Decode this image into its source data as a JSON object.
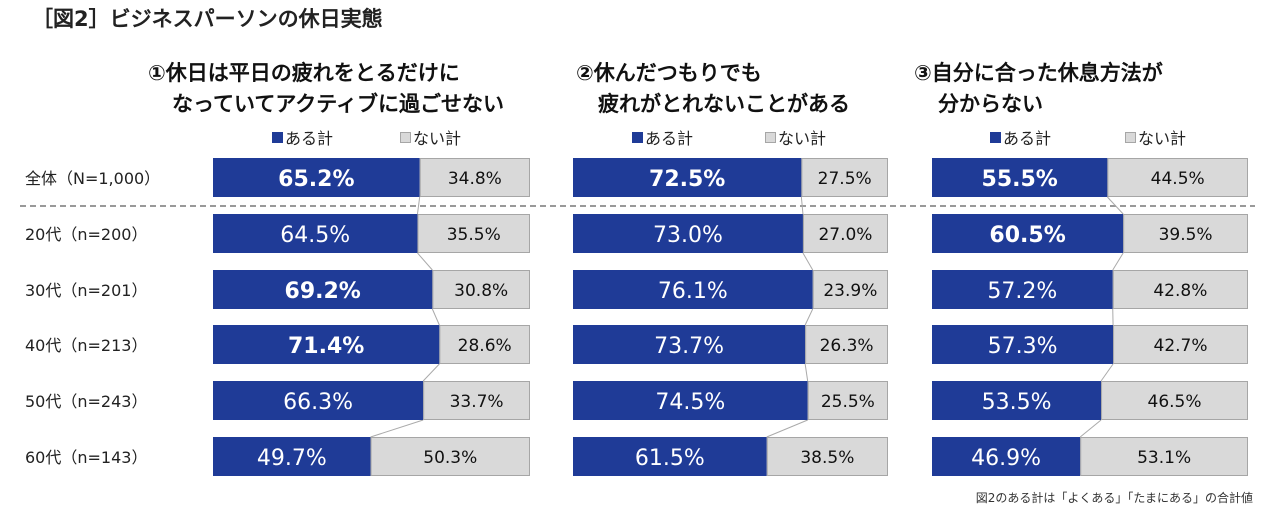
{
  "title": "［図2］ビジネスパーソンの休日実態",
  "footnote": "図2のある計は「よくある」「たまにある」の合計値",
  "colors": {
    "aru": "#1f3b97",
    "nai": "#d9d9d9",
    "nai_border": "#a6a6a6"
  },
  "chart_data": {
    "type": "bar",
    "stacked": true,
    "orientation": "horizontal",
    "xlim": [
      0,
      100
    ],
    "unit": "%",
    "categories": [
      "全体（N=1,000）",
      "20代（n=200）",
      "30代（n=201）",
      "40代（n=213）",
      "50代（n=243）",
      "60代（n=143）"
    ],
    "legend": [
      "ある計",
      "ない計"
    ],
    "panels": [
      {
        "title_lines": [
          "①休日は平日の疲れをとるだけに",
          "なっていてアクティブに過ごせない"
        ],
        "series": [
          {
            "name": "ある計",
            "values": [
              65.2,
              64.5,
              69.2,
              71.4,
              66.3,
              49.7
            ]
          },
          {
            "name": "ない計",
            "values": [
              34.8,
              35.5,
              30.8,
              28.6,
              33.7,
              50.3
            ]
          }
        ],
        "labels_aru": [
          "65.2%",
          "64.5%",
          "69.2%",
          "71.4%",
          "66.3%",
          "49.7%"
        ],
        "labels_nai": [
          "34.8%",
          "35.5%",
          "30.8%",
          "28.6%",
          "33.7%",
          "50.3%"
        ],
        "bold": [
          true,
          false,
          true,
          true,
          false,
          false
        ]
      },
      {
        "title_lines": [
          "②休んだつもりでも",
          "疲れがとれないことがある"
        ],
        "series": [
          {
            "name": "ある計",
            "values": [
              72.5,
              73.0,
              76.1,
              73.7,
              74.5,
              61.5
            ]
          },
          {
            "name": "ない計",
            "values": [
              27.5,
              27.0,
              23.9,
              26.3,
              25.5,
              38.5
            ]
          }
        ],
        "labels_aru": [
          "72.5%",
          "73.0%",
          "76.1%",
          "73.7%",
          "74.5%",
          "61.5%"
        ],
        "labels_nai": [
          "27.5%",
          "27.0%",
          "23.9%",
          "26.3%",
          "25.5%",
          "38.5%"
        ],
        "bold": [
          true,
          false,
          false,
          false,
          false,
          false
        ]
      },
      {
        "title_lines": [
          "③自分に合った休息方法が",
          "分からない"
        ],
        "series": [
          {
            "name": "ある計",
            "values": [
              55.5,
              60.5,
              57.2,
              57.3,
              53.5,
              46.9
            ]
          },
          {
            "name": "ない計",
            "values": [
              44.5,
              39.5,
              42.8,
              42.7,
              46.5,
              53.1
            ]
          }
        ],
        "labels_aru": [
          "55.5%",
          "60.5%",
          "57.2%",
          "57.3%",
          "53.5%",
          "46.9%"
        ],
        "labels_nai": [
          "44.5%",
          "39.5%",
          "42.8%",
          "42.7%",
          "46.5%",
          "53.1%"
        ],
        "bold": [
          true,
          true,
          false,
          false,
          false,
          false
        ]
      }
    ]
  }
}
